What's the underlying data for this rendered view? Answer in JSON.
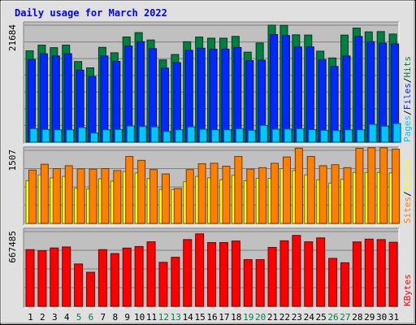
{
  "chart_data": {
    "title": "Daily usage for March 2022",
    "days": [
      "1",
      "2",
      "3",
      "4",
      "5",
      "6",
      "7",
      "8",
      "9",
      "10",
      "11",
      "12",
      "13",
      "14",
      "15",
      "16",
      "17",
      "18",
      "19",
      "20",
      "21",
      "22",
      "23",
      "24",
      "25",
      "26",
      "27",
      "28",
      "29",
      "30",
      "31"
    ],
    "weekend_days": [
      "5",
      "6",
      "12",
      "13",
      "19",
      "20",
      "26",
      "27"
    ],
    "panels": [
      {
        "type": "bar",
        "max_label": "21684",
        "max": 21684,
        "legend": [
          {
            "label": "Pages",
            "color": "#00c8ff"
          },
          {
            "label": "/",
            "color": "#000000"
          },
          {
            "label": "Files",
            "color": "#0028ff"
          },
          {
            "label": "/",
            "color": "#000000"
          },
          {
            "label": "Hits",
            "color": "#008040"
          }
        ],
        "series": [
          {
            "name": "Hits",
            "color": "#008040",
            "values": [
              16930,
              17990,
              17520,
              17990,
              14950,
              13780,
              17580,
              16580,
              19500,
              20310,
              18940,
              15250,
              16250,
              18620,
              19490,
              19280,
              19280,
              19610,
              16690,
              18390,
              21690,
              21650,
              19900,
              19860,
              16870,
              15610,
              19850,
              21150,
              20450,
              20500,
              20040
            ]
          },
          {
            "name": "Files",
            "color": "#0028ff",
            "values": [
              15330,
              16390,
              15980,
              16390,
              13350,
              12170,
              15980,
              14980,
              17820,
              18630,
              17340,
              13730,
              14730,
              17020,
              17420,
              17230,
              17250,
              17550,
              15120,
              15190,
              19940,
              19770,
              17640,
              17660,
              15300,
              14040,
              15980,
              19600,
              18630,
              18350,
              18230
            ]
          },
          {
            "name": "Pages",
            "color": "#00c8ff",
            "values": [
              2500,
              2350,
              2300,
              2300,
              2700,
              1700,
              2300,
              2350,
              3000,
              2900,
              2830,
              1980,
              2300,
              2830,
              2400,
              2300,
              2300,
              2500,
              2200,
              3100,
              2400,
              2430,
              2500,
              2330,
              2200,
              2150,
              2300,
              2300,
              3300,
              2960,
              3450
            ]
          }
        ]
      },
      {
        "type": "bar",
        "max_label": "1507",
        "max": 1507,
        "legend": [
          {
            "label": "Sites",
            "color": "#ff8000"
          },
          {
            "label": "/",
            "color": "#000000"
          },
          {
            "label": "Visits",
            "color": "#ffff00"
          }
        ],
        "series": [
          {
            "name": "Visits",
            "color": "#ffff00",
            "values": [
              880,
              1000,
              940,
              970,
              725,
              710,
              920,
              870,
              1070,
              1040,
              925,
              700,
              700,
              860,
              970,
              940,
              900,
              990,
              880,
              930,
              930,
              1130,
              1090,
              1000,
              900,
              830,
              910,
              1050,
              1050,
              1050,
              1040
            ]
          },
          {
            "name": "Sites",
            "color": "#ff8000",
            "values": [
              1100,
              1220,
              1130,
              1190,
              1125,
              1120,
              1130,
              1090,
              1380,
              1300,
              1110,
              1020,
              720,
              1110,
              1230,
              1240,
              1180,
              1380,
              1120,
              1150,
              1240,
              1370,
              1550,
              1380,
              1190,
              1210,
              1150,
              1550,
              1560,
              1560,
              1530
            ]
          }
        ]
      },
      {
        "type": "bar",
        "max_label": "667485",
        "max": 667485,
        "legend": [
          {
            "label": "KBytes",
            "color": "#ff0000"
          }
        ],
        "series": [
          {
            "name": "KBytes",
            "color": "#ff0000",
            "values": [
              506000,
              496000,
              521000,
              530000,
              378000,
              304000,
              506000,
              471000,
              520000,
              534000,
              576000,
              393000,
              438000,
              596000,
              647000,
              569000,
              569000,
              583000,
              417000,
              417000,
              526000,
              585000,
              633000,
              576000,
              611000,
              428000,
              389000,
              575000,
              600000,
              596000,
              572000
            ]
          }
        ]
      }
    ]
  }
}
